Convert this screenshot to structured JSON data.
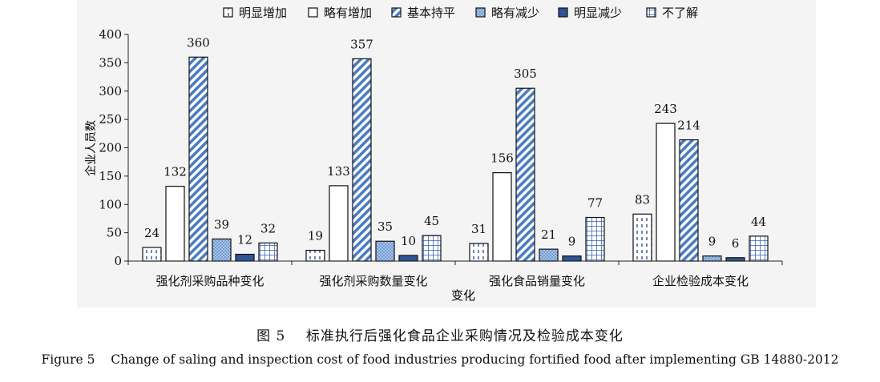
{
  "chart_data": {
    "type": "bar",
    "title": "",
    "xlabel": "变化",
    "ylabel": "企业人员数",
    "ylim": [
      0,
      400
    ],
    "yticks": [
      0,
      50,
      100,
      150,
      200,
      250,
      300,
      350,
      400
    ],
    "legend_position": "top",
    "categories": [
      "强化剂采购品种变化",
      "强化剂采购数量变化",
      "强化食品销量变化",
      "企业检验成本变化"
    ],
    "series": [
      {
        "name": "明显增加",
        "values": [
          24,
          19,
          31,
          83
        ],
        "pattern": "dashed-vertical",
        "color": "#ffffff"
      },
      {
        "name": "略有增加",
        "values": [
          132,
          133,
          156,
          243
        ],
        "pattern": "plain",
        "color": "#ffffff"
      },
      {
        "name": "基本持平",
        "values": [
          360,
          357,
          305,
          214
        ],
        "pattern": "diagonal",
        "color": "#4a7cc0"
      },
      {
        "name": "略有减少",
        "values": [
          39,
          35,
          21,
          9
        ],
        "pattern": "dots",
        "color": "#6e9fd6"
      },
      {
        "name": "明显减少",
        "values": [
          12,
          10,
          9,
          6
        ],
        "pattern": "solid",
        "color": "#2f5597"
      },
      {
        "name": "不了解",
        "values": [
          32,
          45,
          77,
          44
        ],
        "pattern": "grid",
        "color": "#3a67b0"
      }
    ]
  },
  "caption": {
    "cn_number": "图 5",
    "cn_text": "标准执行后强化食品企业采购情况及检验成本变化",
    "en_number": "Figure 5",
    "en_text": "Change of saling and inspection cost of food industries producing fortified food after implementing GB 14880-2012"
  }
}
